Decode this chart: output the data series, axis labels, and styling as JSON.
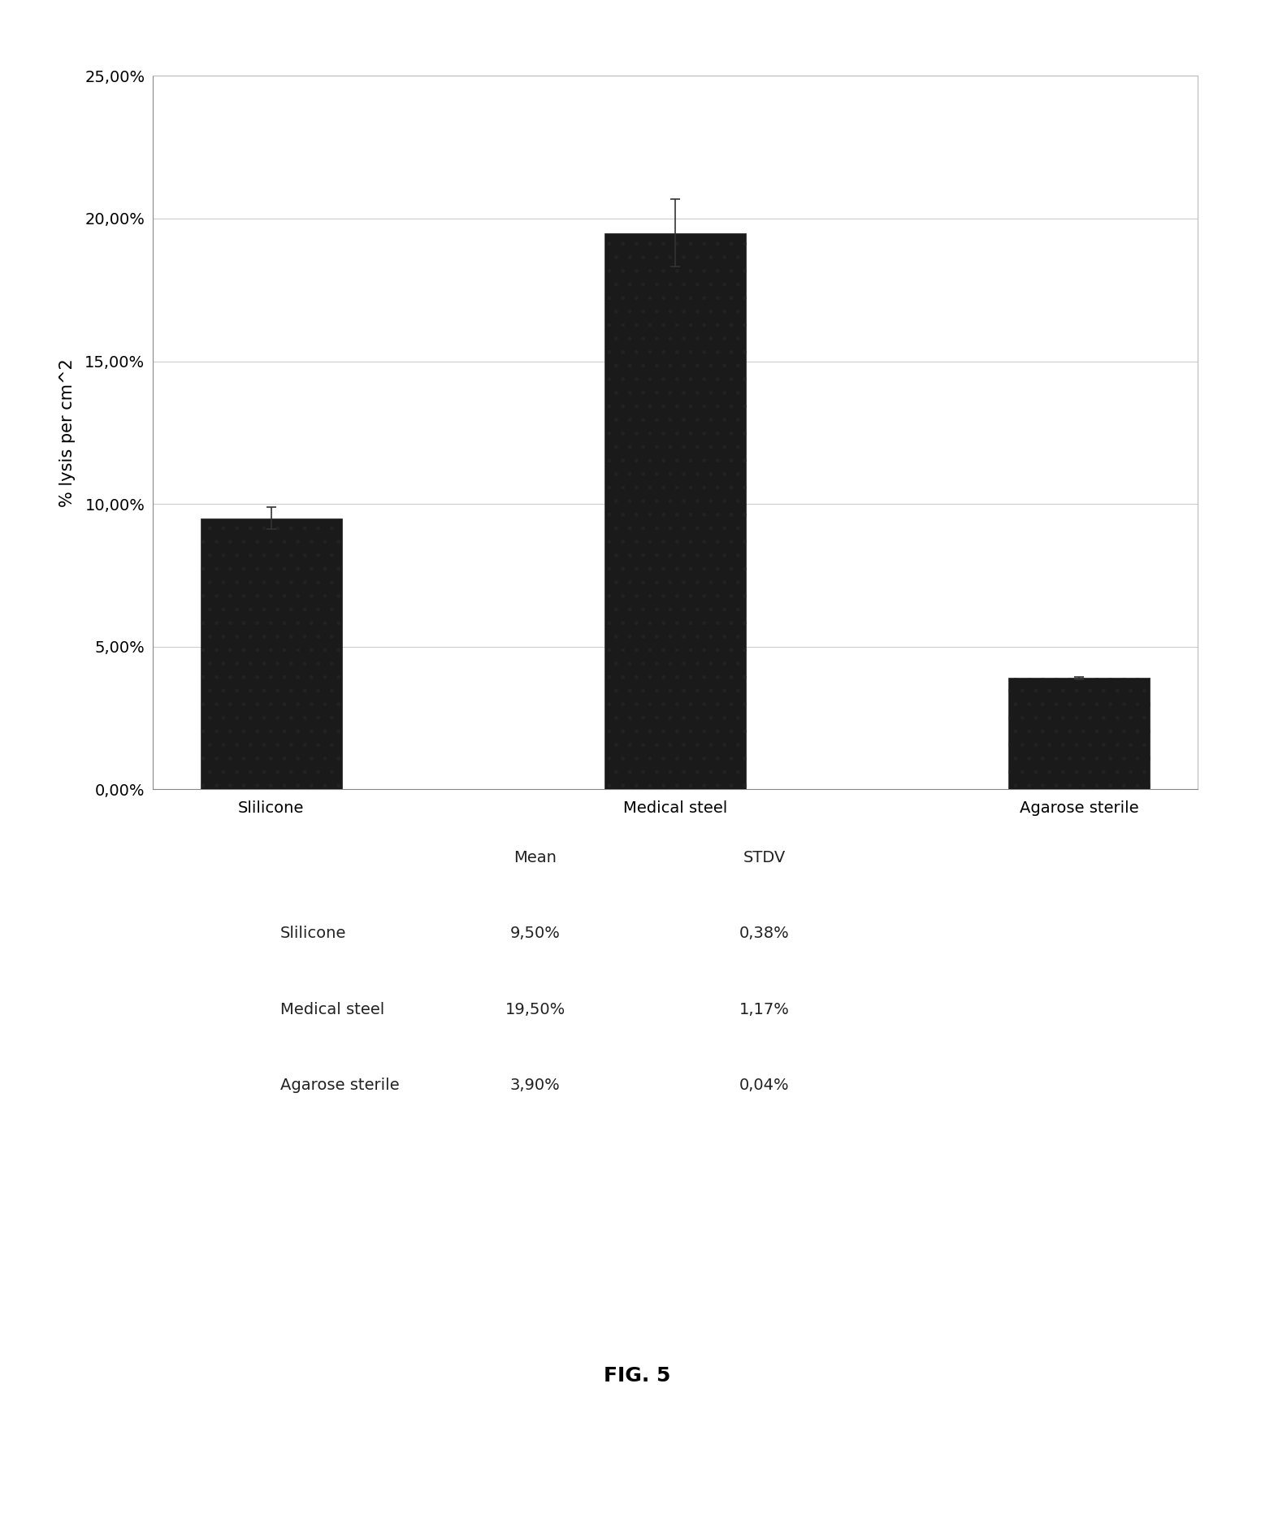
{
  "categories": [
    "Slilicone",
    "Medical steel",
    "Agarose sterile"
  ],
  "values": [
    0.095,
    0.195,
    0.039
  ],
  "errors": [
    0.0038,
    0.0117,
    0.0004
  ],
  "bar_color": "#1a1a1a",
  "bar_width": 0.35,
  "ylim": [
    0,
    0.25
  ],
  "yticks": [
    0.0,
    0.05,
    0.1,
    0.15,
    0.2,
    0.25
  ],
  "ytick_labels": [
    "0,00%",
    "5,00%",
    "10,00%",
    "15,00%",
    "20,00%",
    "25,00%"
  ],
  "ylabel": "% lysis per cm^2",
  "ylabel_fontsize": 15,
  "tick_fontsize": 14,
  "xlabel_fontsize": 14,
  "figure_width": 15.68,
  "figure_height": 18.68,
  "table_rows": [
    [
      "Slilicone",
      "9,50%",
      "0,38%"
    ],
    [
      "Medical steel",
      "19,50%",
      "1,17%"
    ],
    [
      "Agarose sterile",
      "3,90%",
      "0,04%"
    ]
  ],
  "fig_label": "FIG. 5",
  "background_color": "#ffffff",
  "grid_color": "#cccccc",
  "hatch": ".",
  "error_capsize": 4,
  "error_linewidth": 1.2,
  "error_color": "#333333"
}
